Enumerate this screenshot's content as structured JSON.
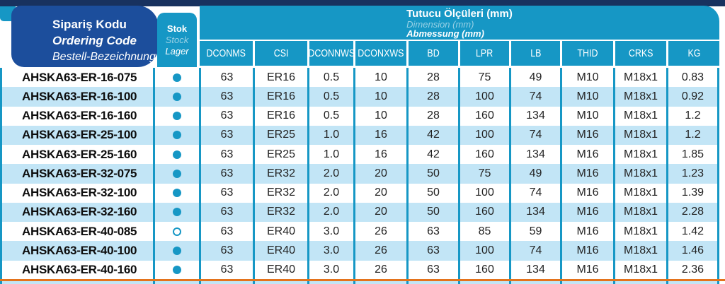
{
  "colors": {
    "teal": "#1697c5",
    "navy": "#18325f",
    "blue": "#1c4e9c",
    "stripe": "#c2e5f6",
    "orange": "#e4731c"
  },
  "header": {
    "ordering_code": {
      "tr": "Sipariş Kodu",
      "en": "Ordering Code",
      "de": "Bestell-Bezeichnung"
    },
    "stock": {
      "tr": "Stok",
      "en": "Stock",
      "de": "Lager"
    },
    "dimensions": {
      "tr": "Tutucu Ölçüleri (mm)",
      "en": "Dimension (mm)",
      "de": "Abmessung (mm)"
    },
    "columns": [
      "DCONMS",
      "CSI",
      "DCONNWS",
      "DCONXWS",
      "BD",
      "LPR",
      "LB",
      "THID",
      "CRKS",
      "KG"
    ]
  },
  "rows": [
    {
      "code": "AHSKA63-ER-16-075",
      "stock": "filled",
      "values": [
        "63",
        "ER16",
        "0.5",
        "10",
        "28",
        "75",
        "49",
        "M10",
        "M18x1",
        "0.83"
      ]
    },
    {
      "code": "AHSKA63-ER-16-100",
      "stock": "filled",
      "values": [
        "63",
        "ER16",
        "0.5",
        "10",
        "28",
        "100",
        "74",
        "M10",
        "M18x1",
        "0.92"
      ]
    },
    {
      "code": "AHSKA63-ER-16-160",
      "stock": "filled",
      "values": [
        "63",
        "ER16",
        "0.5",
        "10",
        "28",
        "160",
        "134",
        "M10",
        "M18x1",
        "1.2"
      ]
    },
    {
      "code": "AHSKA63-ER-25-100",
      "stock": "filled",
      "values": [
        "63",
        "ER25",
        "1.0",
        "16",
        "42",
        "100",
        "74",
        "M16",
        "M18x1",
        "1.2"
      ]
    },
    {
      "code": "AHSKA63-ER-25-160",
      "stock": "filled",
      "values": [
        "63",
        "ER25",
        "1.0",
        "16",
        "42",
        "160",
        "134",
        "M16",
        "M18x1",
        "1.85"
      ]
    },
    {
      "code": "AHSKA63-ER-32-075",
      "stock": "filled",
      "values": [
        "63",
        "ER32",
        "2.0",
        "20",
        "50",
        "75",
        "49",
        "M16",
        "M18x1",
        "1.23"
      ]
    },
    {
      "code": "AHSKA63-ER-32-100",
      "stock": "filled",
      "values": [
        "63",
        "ER32",
        "2.0",
        "20",
        "50",
        "100",
        "74",
        "M16",
        "M18x1",
        "1.39"
      ]
    },
    {
      "code": "AHSKA63-ER-32-160",
      "stock": "filled",
      "values": [
        "63",
        "ER32",
        "2.0",
        "20",
        "50",
        "160",
        "134",
        "M16",
        "M18x1",
        "2.28"
      ]
    },
    {
      "code": "AHSKA63-ER-40-085",
      "stock": "open",
      "values": [
        "63",
        "ER40",
        "3.0",
        "26",
        "63",
        "85",
        "59",
        "M16",
        "M18x1",
        "1.42"
      ]
    },
    {
      "code": "AHSKA63-ER-40-100",
      "stock": "filled",
      "values": [
        "63",
        "ER40",
        "3.0",
        "26",
        "63",
        "100",
        "74",
        "M16",
        "M18x1",
        "1.46"
      ]
    },
    {
      "code": "AHSKA63-ER-40-160",
      "stock": "filled",
      "values": [
        "63",
        "ER40",
        "3.0",
        "26",
        "63",
        "160",
        "134",
        "M16",
        "M18x1",
        "2.36"
      ]
    }
  ]
}
